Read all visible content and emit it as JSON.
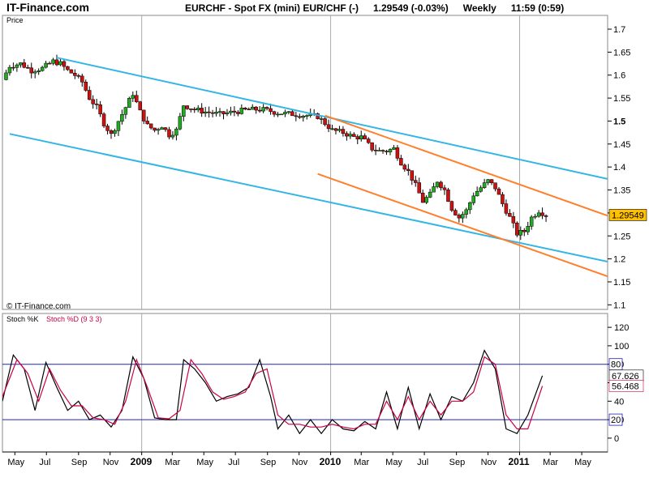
{
  "header": {
    "brand": "IT-Finance.com",
    "instrument": "EURCHF - Spot FX (mini) EUR/CHF (-)",
    "quote": "1.29549 (-0.03%)",
    "period": "Weekly",
    "time": "11:59 (0:59)"
  },
  "colors": {
    "up_candle": "#22aa22",
    "down_candle": "#cc1111",
    "channel_blue": "#33b5e5",
    "channel_orange": "#ff7f2a",
    "stoch_k": "#000000",
    "stoch_d": "#cc0044",
    "stoch_levels": "#2222aa",
    "price_badge": "#ffc000"
  },
  "chart_data": [
    {
      "type": "candlestick",
      "label": "Price",
      "watermark": "© IT-Finance.com",
      "ylim": [
        1.09,
        1.73
      ],
      "y_ticks": [
        "1.7",
        "1.65",
        "1.6",
        "1.55",
        "1.5",
        "1.45",
        "1.4",
        "1.35",
        "1.3",
        "1.25",
        "1.2",
        "1.15",
        "1.1"
      ],
      "bold_ticks": [
        "1.5"
      ],
      "last_price": "1.29549",
      "x_range": [
        "2008-04-07",
        "2011-06-20"
      ],
      "x_ticks": [
        {
          "date": "2008-05-01",
          "label": "May"
        },
        {
          "date": "2008-07-01",
          "label": "Jul"
        },
        {
          "date": "2008-09-01",
          "label": "Sep"
        },
        {
          "date": "2008-11-01",
          "label": "Nov"
        },
        {
          "date": "2009-01-01",
          "label": "2009",
          "bold": true
        },
        {
          "date": "2009-03-01",
          "label": "Mar"
        },
        {
          "date": "2009-05-01",
          "label": "May"
        },
        {
          "date": "2009-07-01",
          "label": "Jul"
        },
        {
          "date": "2009-09-01",
          "label": "Sep"
        },
        {
          "date": "2009-11-01",
          "label": "Nov"
        },
        {
          "date": "2010-01-01",
          "label": "2010",
          "bold": true
        },
        {
          "date": "2010-03-01",
          "label": "Mar"
        },
        {
          "date": "2010-05-01",
          "label": "May"
        },
        {
          "date": "2010-07-01",
          "label": "Jul"
        },
        {
          "date": "2010-09-01",
          "label": "Sep"
        },
        {
          "date": "2010-11-01",
          "label": "Nov"
        },
        {
          "date": "2011-01-01",
          "label": "2011",
          "bold": true
        },
        {
          "date": "2011-03-01",
          "label": "Mar"
        },
        {
          "date": "2011-05-01",
          "label": "May"
        }
      ],
      "year_lines": [
        "2009-01-01",
        "2010-01-01",
        "2011-01-01"
      ],
      "close_path": [
        [
          "2008-04-07",
          1.59
        ],
        [
          "2008-04-21",
          1.62
        ],
        [
          "2008-05-12",
          1.625
        ],
        [
          "2008-06-02",
          1.61
        ],
        [
          "2008-06-23",
          1.615
        ],
        [
          "2008-07-14",
          1.63
        ],
        [
          "2008-07-28",
          1.625
        ],
        [
          "2008-08-11",
          1.61
        ],
        [
          "2008-08-25",
          1.6
        ],
        [
          "2008-09-08",
          1.585
        ],
        [
          "2008-09-22",
          1.55
        ],
        [
          "2008-10-06",
          1.53
        ],
        [
          "2008-10-20",
          1.495
        ],
        [
          "2008-11-03",
          1.47
        ],
        [
          "2008-11-17",
          1.5
        ],
        [
          "2008-12-01",
          1.53
        ],
        [
          "2008-12-15",
          1.56
        ],
        [
          "2008-12-29",
          1.52
        ],
        [
          "2009-01-12",
          1.49
        ],
        [
          "2009-01-26",
          1.48
        ],
        [
          "2009-02-09",
          1.49
        ],
        [
          "2009-02-23",
          1.47
        ],
        [
          "2009-03-09",
          1.48
        ],
        [
          "2009-03-23",
          1.535
        ],
        [
          "2009-04-13",
          1.525
        ],
        [
          "2009-05-04",
          1.52
        ],
        [
          "2009-06-01",
          1.515
        ],
        [
          "2009-06-29",
          1.52
        ],
        [
          "2009-07-27",
          1.525
        ],
        [
          "2009-08-24",
          1.525
        ],
        [
          "2009-09-21",
          1.518
        ],
        [
          "2009-10-19",
          1.515
        ],
        [
          "2009-11-16",
          1.512
        ],
        [
          "2009-12-07",
          1.51
        ],
        [
          "2009-12-21",
          1.495
        ],
        [
          "2010-01-04",
          1.48
        ],
        [
          "2010-01-25",
          1.475
        ],
        [
          "2010-02-15",
          1.465
        ],
        [
          "2010-03-01",
          1.465
        ],
        [
          "2010-03-22",
          1.44
        ],
        [
          "2010-04-05",
          1.435
        ],
        [
          "2010-04-19",
          1.435
        ],
        [
          "2010-05-03",
          1.44
        ],
        [
          "2010-05-17",
          1.41
        ],
        [
          "2010-05-31",
          1.39
        ],
        [
          "2010-06-14",
          1.36
        ],
        [
          "2010-06-28",
          1.325
        ],
        [
          "2010-07-12",
          1.34
        ],
        [
          "2010-07-26",
          1.37
        ],
        [
          "2010-08-09",
          1.35
        ],
        [
          "2010-08-23",
          1.31
        ],
        [
          "2010-09-06",
          1.29
        ],
        [
          "2010-09-20",
          1.305
        ],
        [
          "2010-10-04",
          1.34
        ],
        [
          "2010-10-18",
          1.355
        ],
        [
          "2010-11-01",
          1.37
        ],
        [
          "2010-11-15",
          1.355
        ],
        [
          "2010-11-29",
          1.32
        ],
        [
          "2010-12-13",
          1.29
        ],
        [
          "2010-12-27",
          1.255
        ],
        [
          "2011-01-10",
          1.26
        ],
        [
          "2011-01-24",
          1.29
        ],
        [
          "2011-02-07",
          1.305
        ],
        [
          "2011-02-21",
          1.295
        ]
      ],
      "trendlines": [
        {
          "color": "channel_blue",
          "from": [
            "2008-07-21",
            1.638
          ],
          "to": [
            "2011-06-20",
            1.374
          ]
        },
        {
          "color": "channel_blue",
          "from": [
            "2008-04-21",
            1.472
          ],
          "to": [
            "2011-06-20",
            1.194
          ]
        },
        {
          "color": "channel_orange",
          "from": [
            "2009-12-21",
            1.512
          ],
          "to": [
            "2011-06-20",
            1.294
          ]
        },
        {
          "color": "channel_orange",
          "from": [
            "2009-12-07",
            1.385
          ],
          "to": [
            "2011-06-20",
            1.162
          ]
        }
      ]
    },
    {
      "type": "line",
      "label_k": "Stoch %K",
      "label_d": "Stoch %D (9 3 3)",
      "ylim": [
        -15,
        135
      ],
      "y_ticks": [
        "120",
        "100",
        "80",
        "60",
        "40",
        "20",
        "0"
      ],
      "levels": [
        {
          "value": 80,
          "label": "80"
        },
        {
          "value": 20,
          "label": "20"
        }
      ],
      "last_k": "67.626",
      "last_d": "56.468",
      "series": [
        {
          "name": "Stoch %K",
          "color": "stoch_k",
          "points": [
            [
              "2008-04-07",
              40
            ],
            [
              "2008-04-28",
              90
            ],
            [
              "2008-05-19",
              75
            ],
            [
              "2008-06-09",
              30
            ],
            [
              "2008-06-30",
              82
            ],
            [
              "2008-07-21",
              55
            ],
            [
              "2008-08-11",
              30
            ],
            [
              "2008-09-01",
              40
            ],
            [
              "2008-09-22",
              20
            ],
            [
              "2008-10-13",
              25
            ],
            [
              "2008-11-03",
              12
            ],
            [
              "2008-11-24",
              30
            ],
            [
              "2008-12-15",
              88
            ],
            [
              "2009-01-05",
              65
            ],
            [
              "2009-01-26",
              22
            ],
            [
              "2009-02-16",
              20
            ],
            [
              "2009-03-09",
              20
            ],
            [
              "2009-03-23",
              85
            ],
            [
              "2009-04-13",
              75
            ],
            [
              "2009-05-04",
              60
            ],
            [
              "2009-05-25",
              40
            ],
            [
              "2009-06-15",
              45
            ],
            [
              "2009-07-06",
              48
            ],
            [
              "2009-07-27",
              55
            ],
            [
              "2009-08-17",
              85
            ],
            [
              "2009-09-07",
              45
            ],
            [
              "2009-09-21",
              10
            ],
            [
              "2009-10-12",
              25
            ],
            [
              "2009-11-02",
              5
            ],
            [
              "2009-11-23",
              20
            ],
            [
              "2009-12-14",
              5
            ],
            [
              "2010-01-04",
              20
            ],
            [
              "2010-01-25",
              10
            ],
            [
              "2010-02-15",
              8
            ],
            [
              "2010-03-08",
              18
            ],
            [
              "2010-03-29",
              10
            ],
            [
              "2010-04-19",
              50
            ],
            [
              "2010-05-10",
              10
            ],
            [
              "2010-05-31",
              55
            ],
            [
              "2010-06-21",
              10
            ],
            [
              "2010-07-12",
              48
            ],
            [
              "2010-08-02",
              20
            ],
            [
              "2010-08-23",
              45
            ],
            [
              "2010-09-13",
              40
            ],
            [
              "2010-10-04",
              60
            ],
            [
              "2010-10-25",
              95
            ],
            [
              "2010-11-15",
              75
            ],
            [
              "2010-12-06",
              10
            ],
            [
              "2010-12-27",
              5
            ],
            [
              "2011-01-17",
              25
            ],
            [
              "2011-02-14",
              67.6
            ]
          ]
        },
        {
          "name": "Stoch %D (9 3 3)",
          "color": "stoch_d",
          "points": [
            [
              "2008-04-07",
              45
            ],
            [
              "2008-05-05",
              85
            ],
            [
              "2008-05-26",
              70
            ],
            [
              "2008-06-16",
              40
            ],
            [
              "2008-07-07",
              75
            ],
            [
              "2008-07-28",
              52
            ],
            [
              "2008-08-18",
              35
            ],
            [
              "2008-09-08",
              35
            ],
            [
              "2008-09-29",
              22
            ],
            [
              "2008-10-20",
              20
            ],
            [
              "2008-11-10",
              15
            ],
            [
              "2008-12-01",
              40
            ],
            [
              "2008-12-22",
              85
            ],
            [
              "2009-01-12",
              55
            ],
            [
              "2009-02-02",
              22
            ],
            [
              "2009-02-23",
              21
            ],
            [
              "2009-03-16",
              30
            ],
            [
              "2009-04-06",
              85
            ],
            [
              "2009-04-27",
              70
            ],
            [
              "2009-05-18",
              50
            ],
            [
              "2009-06-08",
              42
            ],
            [
              "2009-06-29",
              45
            ],
            [
              "2009-07-20",
              50
            ],
            [
              "2009-08-10",
              70
            ],
            [
              "2009-08-31",
              75
            ],
            [
              "2009-09-21",
              25
            ],
            [
              "2009-10-12",
              15
            ],
            [
              "2009-11-02",
              15
            ],
            [
              "2009-11-23",
              12
            ],
            [
              "2009-12-14",
              12
            ],
            [
              "2010-01-04",
              15
            ],
            [
              "2010-01-25",
              12
            ],
            [
              "2010-02-15",
              10
            ],
            [
              "2010-03-08",
              15
            ],
            [
              "2010-03-29",
              15
            ],
            [
              "2010-04-19",
              40
            ],
            [
              "2010-05-10",
              20
            ],
            [
              "2010-05-31",
              45
            ],
            [
              "2010-06-21",
              20
            ],
            [
              "2010-07-12",
              40
            ],
            [
              "2010-08-02",
              25
            ],
            [
              "2010-08-23",
              40
            ],
            [
              "2010-09-13",
              40
            ],
            [
              "2010-10-04",
              50
            ],
            [
              "2010-10-25",
              88
            ],
            [
              "2010-11-15",
              80
            ],
            [
              "2010-12-06",
              25
            ],
            [
              "2010-12-27",
              10
            ],
            [
              "2011-01-17",
              10
            ],
            [
              "2011-02-14",
              56.5
            ]
          ]
        }
      ]
    }
  ]
}
